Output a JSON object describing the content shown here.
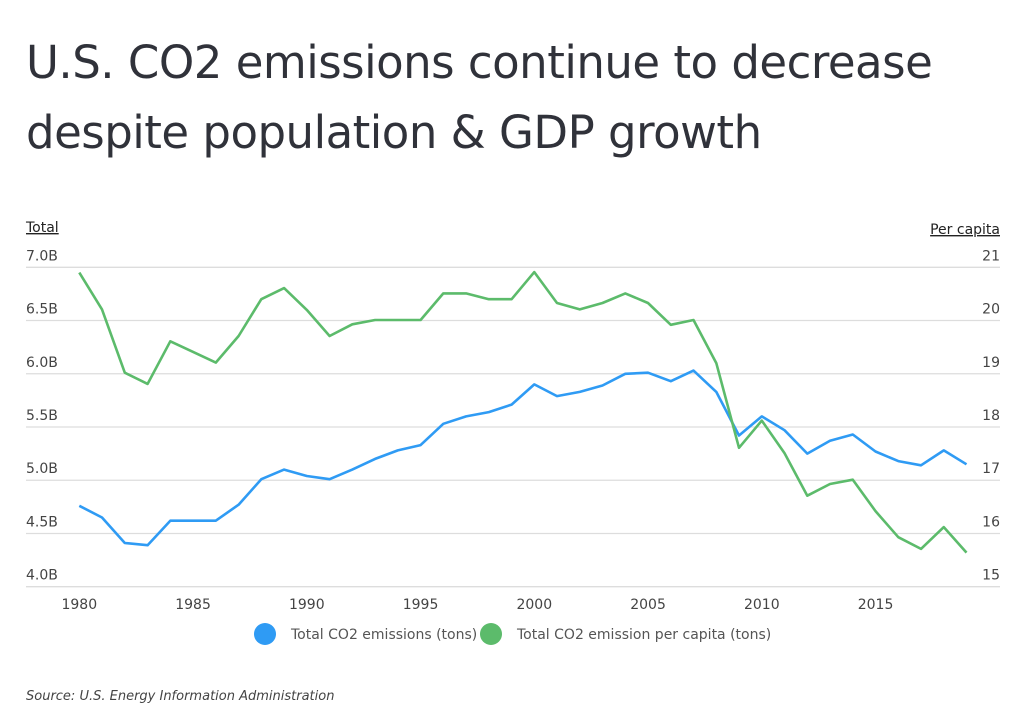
{
  "title": "U.S. CO2 emissions continue to decrease despite population & GDP growth",
  "source": "Source:  U.S. Energy Information Administration",
  "colors": {
    "total": "#2f9bf4",
    "per_capita": "#5cbb6b",
    "grid": "#dddddd"
  },
  "chart_data": {
    "type": "line",
    "title": "U.S. CO2 emissions continue to decrease despite population & GDP growth",
    "ylabel_left": "Total",
    "ylabel_right": "Per capita",
    "ylim_left": [
      4.0,
      7.0
    ],
    "ylim_right": [
      15,
      21
    ],
    "yticks_left": [
      "4.0B",
      "4.5B",
      "5.0B",
      "5.5B",
      "6.0B",
      "6.5B",
      "7.0B"
    ],
    "yticks_right": [
      "15",
      "16",
      "17",
      "18",
      "19",
      "20",
      "21"
    ],
    "xticks": [
      "1980",
      "1985",
      "1990",
      "1995",
      "2000",
      "2005",
      "2010",
      "2015"
    ],
    "grid": true,
    "legend_placement": "bottom",
    "x": [
      1980,
      1981,
      1982,
      1983,
      1984,
      1985,
      1986,
      1987,
      1988,
      1989,
      1990,
      1991,
      1992,
      1993,
      1994,
      1995,
      1996,
      1997,
      1998,
      1999,
      2000,
      2001,
      2002,
      2003,
      2004,
      2005,
      2006,
      2007,
      2008,
      2009,
      2010,
      2011,
      2012,
      2013,
      2014,
      2015,
      2016,
      2017,
      2018,
      2019
    ],
    "series": [
      {
        "name": "Total CO2 emissions (tons)",
        "axis": "left",
        "unit": "billion tons",
        "values": [
          4.76,
          4.65,
          4.41,
          4.39,
          4.62,
          4.62,
          4.62,
          4.77,
          5.01,
          5.1,
          5.04,
          5.01,
          5.1,
          5.2,
          5.28,
          5.33,
          5.53,
          5.6,
          5.64,
          5.71,
          5.9,
          5.79,
          5.83,
          5.89,
          6.0,
          6.01,
          5.93,
          6.03,
          5.83,
          5.42,
          5.6,
          5.47,
          5.25,
          5.37,
          5.43,
          5.27,
          5.18,
          5.14,
          5.28,
          5.15
        ]
      },
      {
        "name": "Total CO2 emission per capita (tons)",
        "axis": "right",
        "values": [
          20.9,
          20.21,
          19.02,
          18.81,
          19.61,
          19.41,
          19.21,
          19.71,
          20.4,
          20.61,
          20.2,
          19.71,
          19.93,
          20.01,
          20.01,
          20.01,
          20.51,
          20.51,
          20.4,
          20.4,
          20.91,
          20.33,
          20.21,
          20.33,
          20.51,
          20.33,
          19.92,
          20.01,
          19.2,
          17.61,
          18.12,
          17.51,
          16.71,
          16.93,
          17.01,
          16.42,
          15.93,
          15.71,
          16.12,
          15.64
        ]
      }
    ]
  }
}
